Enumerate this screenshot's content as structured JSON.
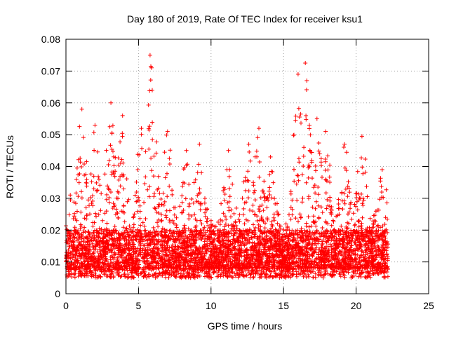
{
  "chart_data": {
    "type": "scatter",
    "title": "Day 180 of 2019, Rate Of TEC Index for receiver ksu1",
    "xlabel": "GPS time / hours",
    "ylabel": "ROTI / TECUs",
    "xlim": [
      0,
      25
    ],
    "ylim": [
      0,
      0.08
    ],
    "x_ticks": [
      0,
      5,
      10,
      15,
      20,
      25
    ],
    "x_tick_labels": [
      "0",
      "5",
      "10",
      "15",
      "20",
      "25"
    ],
    "y_ticks": [
      0,
      0.01,
      0.02,
      0.03,
      0.04,
      0.05,
      0.06,
      0.07,
      0.08
    ],
    "y_tick_labels": [
      "0",
      "0.01",
      "0.02",
      "0.03",
      "0.04",
      "0.05",
      "0.06",
      "0.07",
      "0.08"
    ],
    "grid": true,
    "marker": "plus",
    "series": [
      {
        "name": "ROTI",
        "color": "#ff0000",
        "x_range": [
          0,
          22.2
        ],
        "baseline_range": [
          0.005,
          0.02
        ],
        "peaks": [
          {
            "x": 0.3,
            "y": 0.031
          },
          {
            "x": 1.1,
            "y": 0.058
          },
          {
            "x": 2.0,
            "y": 0.053
          },
          {
            "x": 3.1,
            "y": 0.06
          },
          {
            "x": 3.9,
            "y": 0.056
          },
          {
            "x": 5.2,
            "y": 0.052
          },
          {
            "x": 5.8,
            "y": 0.075
          },
          {
            "x": 5.85,
            "y": 0.0715
          },
          {
            "x": 5.95,
            "y": 0.064
          },
          {
            "x": 7.0,
            "y": 0.051
          },
          {
            "x": 8.3,
            "y": 0.045
          },
          {
            "x": 9.2,
            "y": 0.047
          },
          {
            "x": 11.2,
            "y": 0.045
          },
          {
            "x": 12.6,
            "y": 0.047
          },
          {
            "x": 13.3,
            "y": 0.052
          },
          {
            "x": 14.1,
            "y": 0.043
          },
          {
            "x": 16.0,
            "y": 0.069
          },
          {
            "x": 16.5,
            "y": 0.0725
          },
          {
            "x": 16.6,
            "y": 0.067
          },
          {
            "x": 17.3,
            "y": 0.055
          },
          {
            "x": 17.9,
            "y": 0.051
          },
          {
            "x": 19.2,
            "y": 0.047
          },
          {
            "x": 20.4,
            "y": 0.0495
          },
          {
            "x": 21.8,
            "y": 0.039
          }
        ]
      }
    ]
  }
}
